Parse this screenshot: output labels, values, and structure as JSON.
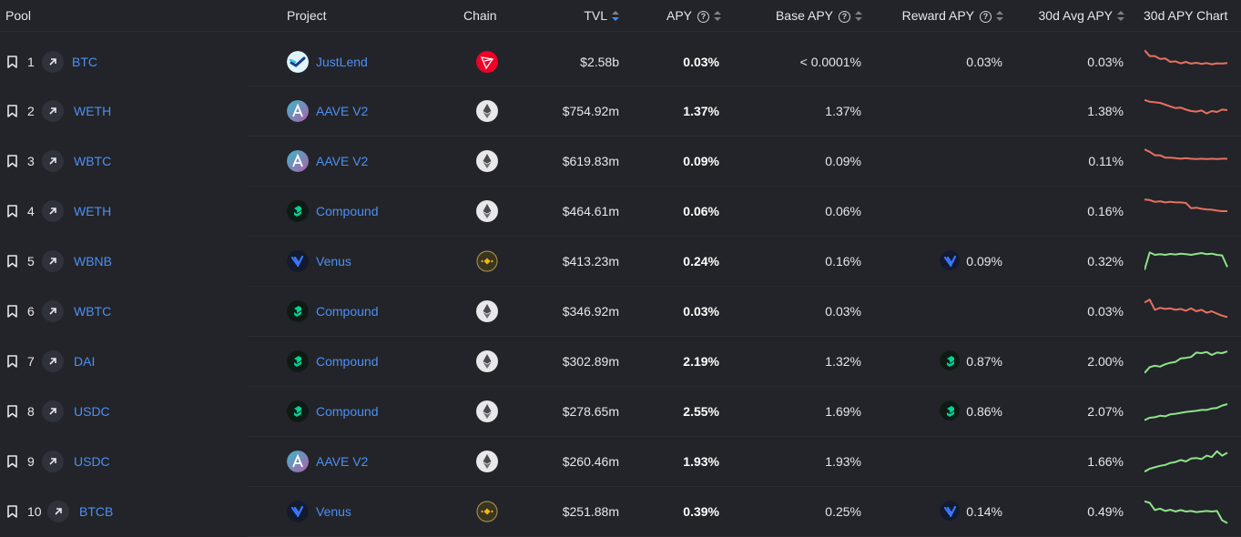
{
  "headers": {
    "pool": "Pool",
    "project": "Project",
    "chain": "Chain",
    "tvl": "TVL",
    "apy": "APY",
    "base_apy": "Base APY",
    "reward_apy": "Reward APY",
    "avg30": "30d Avg APY",
    "chart30": "30d APY Chart"
  },
  "colors": {
    "background": "#222429",
    "link": "#4d8ff5",
    "trend_down": "#e8705f",
    "trend_up": "#8fe388",
    "sort_active": "#3d8ef7"
  },
  "rows": [
    {
      "index": "1",
      "symbol": "BTC",
      "project": "JustLend",
      "project_icon": "justlend-logo",
      "chain_icon": "tron-chain-icon",
      "tvl": "$2.58b",
      "apy": "0.03%",
      "base_apy": "< 0.0001%",
      "reward_icon": "",
      "reward_apy": "0.03%",
      "avg30": "0.03%",
      "trend": "down",
      "spark": [
        0.9,
        0.7,
        0.7,
        0.6,
        0.62,
        0.5,
        0.52,
        0.45,
        0.5,
        0.44,
        0.47,
        0.43,
        0.46,
        0.42,
        0.45,
        0.44,
        0.46
      ]
    },
    {
      "index": "2",
      "symbol": "WETH",
      "project": "AAVE V2",
      "project_icon": "aave-logo",
      "chain_icon": "ethereum-chain-icon",
      "tvl": "$754.92m",
      "apy": "1.37%",
      "base_apy": "1.37%",
      "reward_icon": "",
      "reward_apy": "",
      "avg30": "1.38%",
      "trend": "down",
      "spark": [
        0.88,
        0.82,
        0.8,
        0.78,
        0.72,
        0.66,
        0.6,
        0.62,
        0.55,
        0.5,
        0.48,
        0.52,
        0.42,
        0.5,
        0.47,
        0.55,
        0.53
      ]
    },
    {
      "index": "3",
      "symbol": "WBTC",
      "project": "AAVE V2",
      "project_icon": "aave-logo",
      "chain_icon": "ethereum-chain-icon",
      "tvl": "$619.83m",
      "apy": "0.09%",
      "base_apy": "0.09%",
      "reward_icon": "",
      "reward_apy": "",
      "avg30": "0.11%",
      "trend": "down",
      "spark": [
        0.9,
        0.82,
        0.7,
        0.7,
        0.62,
        0.62,
        0.6,
        0.58,
        0.6,
        0.58,
        0.57,
        0.58,
        0.57,
        0.58,
        0.57,
        0.58,
        0.58
      ]
    },
    {
      "index": "4",
      "symbol": "WETH",
      "project": "Compound",
      "project_icon": "compound-logo",
      "chain_icon": "ethereum-chain-icon",
      "tvl": "$464.61m",
      "apy": "0.06%",
      "base_apy": "0.06%",
      "reward_icon": "",
      "reward_apy": "",
      "avg30": "0.16%",
      "trend": "down",
      "spark": [
        0.9,
        0.88,
        0.82,
        0.84,
        0.8,
        0.82,
        0.8,
        0.8,
        0.78,
        0.6,
        0.62,
        0.58,
        0.56,
        0.55,
        0.52,
        0.5,
        0.5
      ]
    },
    {
      "index": "5",
      "symbol": "WBNB",
      "project": "Venus",
      "project_icon": "venus-logo",
      "chain_icon": "bnb-chain-icon",
      "tvl": "$413.23m",
      "apy": "0.24%",
      "base_apy": "0.16%",
      "reward_icon": "venus-logo",
      "reward_apy": "0.09%",
      "avg30": "0.32%",
      "trend": "up",
      "spark": [
        0.2,
        0.8,
        0.72,
        0.74,
        0.72,
        0.75,
        0.73,
        0.76,
        0.74,
        0.72,
        0.75,
        0.78,
        0.74,
        0.76,
        0.72,
        0.7,
        0.3
      ]
    },
    {
      "index": "6",
      "symbol": "WBTC",
      "project": "Compound",
      "project_icon": "compound-logo",
      "chain_icon": "ethereum-chain-icon",
      "tvl": "$346.92m",
      "apy": "0.03%",
      "base_apy": "0.03%",
      "reward_icon": "",
      "reward_apy": "",
      "avg30": "0.03%",
      "trend": "down",
      "spark": [
        0.8,
        0.9,
        0.55,
        0.62,
        0.58,
        0.6,
        0.55,
        0.58,
        0.52,
        0.6,
        0.5,
        0.55,
        0.45,
        0.5,
        0.42,
        0.35,
        0.3
      ]
    },
    {
      "index": "7",
      "symbol": "DAI",
      "project": "Compound",
      "project_icon": "compound-logo",
      "chain_icon": "ethereum-chain-icon",
      "tvl": "$302.89m",
      "apy": "2.19%",
      "base_apy": "1.32%",
      "reward_icon": "compound-logo",
      "reward_apy": "0.87%",
      "avg30": "2.00%",
      "trend": "up",
      "spark": [
        0.1,
        0.3,
        0.35,
        0.32,
        0.4,
        0.45,
        0.48,
        0.6,
        0.62,
        0.65,
        0.8,
        0.78,
        0.82,
        0.72,
        0.8,
        0.78,
        0.84
      ]
    },
    {
      "index": "8",
      "symbol": "USDC",
      "project": "Compound",
      "project_icon": "compound-logo",
      "chain_icon": "ethereum-chain-icon",
      "tvl": "$278.65m",
      "apy": "2.55%",
      "base_apy": "1.69%",
      "reward_icon": "compound-logo",
      "reward_apy": "0.86%",
      "avg30": "2.07%",
      "trend": "up",
      "spark": [
        0.2,
        0.28,
        0.3,
        0.35,
        0.33,
        0.4,
        0.42,
        0.45,
        0.48,
        0.5,
        0.52,
        0.55,
        0.55,
        0.6,
        0.62,
        0.7,
        0.75
      ]
    },
    {
      "index": "9",
      "symbol": "USDC",
      "project": "AAVE V2",
      "project_icon": "aave-logo",
      "chain_icon": "ethereum-chain-icon",
      "tvl": "$260.46m",
      "apy": "1.93%",
      "base_apy": "1.93%",
      "reward_icon": "",
      "reward_apy": "",
      "avg30": "1.66%",
      "trend": "up",
      "spark": [
        0.15,
        0.25,
        0.3,
        0.35,
        0.38,
        0.45,
        0.48,
        0.55,
        0.5,
        0.6,
        0.62,
        0.58,
        0.7,
        0.65,
        0.85,
        0.7,
        0.8
      ]
    },
    {
      "index": "10",
      "symbol": "BTCB",
      "project": "Venus",
      "project_icon": "venus-logo",
      "chain_icon": "bnb-chain-icon",
      "tvl": "$251.88m",
      "apy": "0.39%",
      "base_apy": "0.25%",
      "reward_icon": "venus-logo",
      "reward_apy": "0.14%",
      "avg30": "0.49%",
      "trend": "up",
      "spark": [
        0.85,
        0.8,
        0.55,
        0.6,
        0.52,
        0.56,
        0.5,
        0.55,
        0.5,
        0.52,
        0.48,
        0.5,
        0.52,
        0.5,
        0.52,
        0.2,
        0.1
      ]
    }
  ]
}
